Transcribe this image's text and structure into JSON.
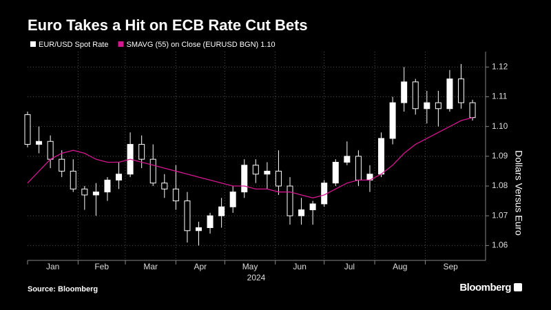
{
  "chart_data": {
    "type": "candlestick",
    "title": "Euro Takes a Hit on ECB Rate Cut Bets",
    "ylabel": "Dollars Versus Euro",
    "xlabel": "2024",
    "source": "Source: Bloomberg",
    "brand": "Bloomberg",
    "grid": true,
    "xlim": [
      0,
      281
    ],
    "xticks": [
      {
        "value": 0,
        "label": "Jan"
      },
      {
        "value": 31,
        "label": "Feb"
      },
      {
        "value": 60,
        "label": "Mar"
      },
      {
        "value": 91,
        "label": "Apr"
      },
      {
        "value": 121,
        "label": "May"
      },
      {
        "value": 152,
        "label": "Jun"
      },
      {
        "value": 182,
        "label": "Jul"
      },
      {
        "value": 213,
        "label": "Aug"
      },
      {
        "value": 244,
        "label": "Sep"
      }
    ],
    "ylim": [
      1.055,
      1.124
    ],
    "yticks": [
      1.06,
      1.07,
      1.08,
      1.09,
      {
        "value": 1.1,
        "label": "1.10"
      },
      1.11,
      1.12
    ],
    "x": [
      0,
      7,
      14,
      21,
      28,
      35,
      42,
      49,
      56,
      63,
      70,
      77,
      84,
      91,
      98,
      105,
      112,
      119,
      126,
      133,
      140,
      147,
      154,
      161,
      168,
      175,
      182,
      189,
      196,
      203,
      210,
      217,
      224,
      231,
      238,
      245,
      252,
      259,
      266,
      273
    ],
    "series": [
      {
        "name": "EUR/USD Spot Rate",
        "color": "#ffffff",
        "type": "candlestick",
        "open": [
          1.104,
          1.094,
          1.095,
          1.089,
          1.085,
          1.079,
          1.077,
          1.078,
          1.082,
          1.084,
          1.094,
          1.089,
          1.081,
          1.079,
          1.075,
          1.065,
          1.066,
          1.07,
          1.073,
          1.078,
          1.087,
          1.084,
          1.085,
          1.08,
          1.07,
          1.072,
          1.074,
          1.081,
          1.088,
          1.09,
          1.082,
          1.084,
          1.096,
          1.108,
          1.115,
          1.106,
          1.108,
          1.106,
          1.116,
          1.108
        ],
        "high": [
          1.105,
          1.1,
          1.097,
          1.092,
          1.089,
          1.08,
          1.081,
          1.083,
          1.088,
          1.098,
          1.097,
          1.094,
          1.084,
          1.087,
          1.078,
          1.068,
          1.071,
          1.076,
          1.08,
          1.089,
          1.089,
          1.088,
          1.092,
          1.083,
          1.076,
          1.075,
          1.082,
          1.089,
          1.095,
          1.092,
          1.087,
          1.098,
          1.11,
          1.12,
          1.116,
          1.112,
          1.112,
          1.119,
          1.121,
          1.109
        ],
        "low": [
          1.093,
          1.091,
          1.086,
          1.083,
          1.078,
          1.072,
          1.07,
          1.075,
          1.079,
          1.083,
          1.086,
          1.08,
          1.076,
          1.072,
          1.061,
          1.06,
          1.064,
          1.066,
          1.071,
          1.076,
          1.081,
          1.079,
          1.077,
          1.067,
          1.067,
          1.067,
          1.073,
          1.08,
          1.087,
          1.08,
          1.078,
          1.083,
          1.094,
          1.105,
          1.104,
          1.101,
          1.1,
          1.105,
          1.106,
          1.102
        ],
        "close": [
          1.094,
          1.095,
          1.089,
          1.085,
          1.079,
          1.077,
          1.078,
          1.082,
          1.084,
          1.094,
          1.089,
          1.081,
          1.079,
          1.075,
          1.065,
          1.066,
          1.07,
          1.073,
          1.078,
          1.087,
          1.084,
          1.085,
          1.08,
          1.07,
          1.072,
          1.074,
          1.081,
          1.088,
          1.09,
          1.082,
          1.084,
          1.096,
          1.108,
          1.115,
          1.106,
          1.108,
          1.106,
          1.116,
          1.108,
          1.103
        ]
      },
      {
        "name": "SMAVG (55)  on Close (EURUSD BGN) 1.10",
        "color": "#d6168f",
        "type": "line",
        "values": [
          1.081,
          1.085,
          1.089,
          1.091,
          1.092,
          1.091,
          1.089,
          1.088,
          1.088,
          1.089,
          1.088,
          1.087,
          1.086,
          1.085,
          1.084,
          1.083,
          1.082,
          1.081,
          1.08,
          1.08,
          1.079,
          1.079,
          1.078,
          1.078,
          1.077,
          1.076,
          1.077,
          1.079,
          1.081,
          1.082,
          1.082,
          1.084,
          1.087,
          1.091,
          1.094,
          1.096,
          1.098,
          1.1,
          1.102,
          1.103
        ]
      }
    ]
  }
}
